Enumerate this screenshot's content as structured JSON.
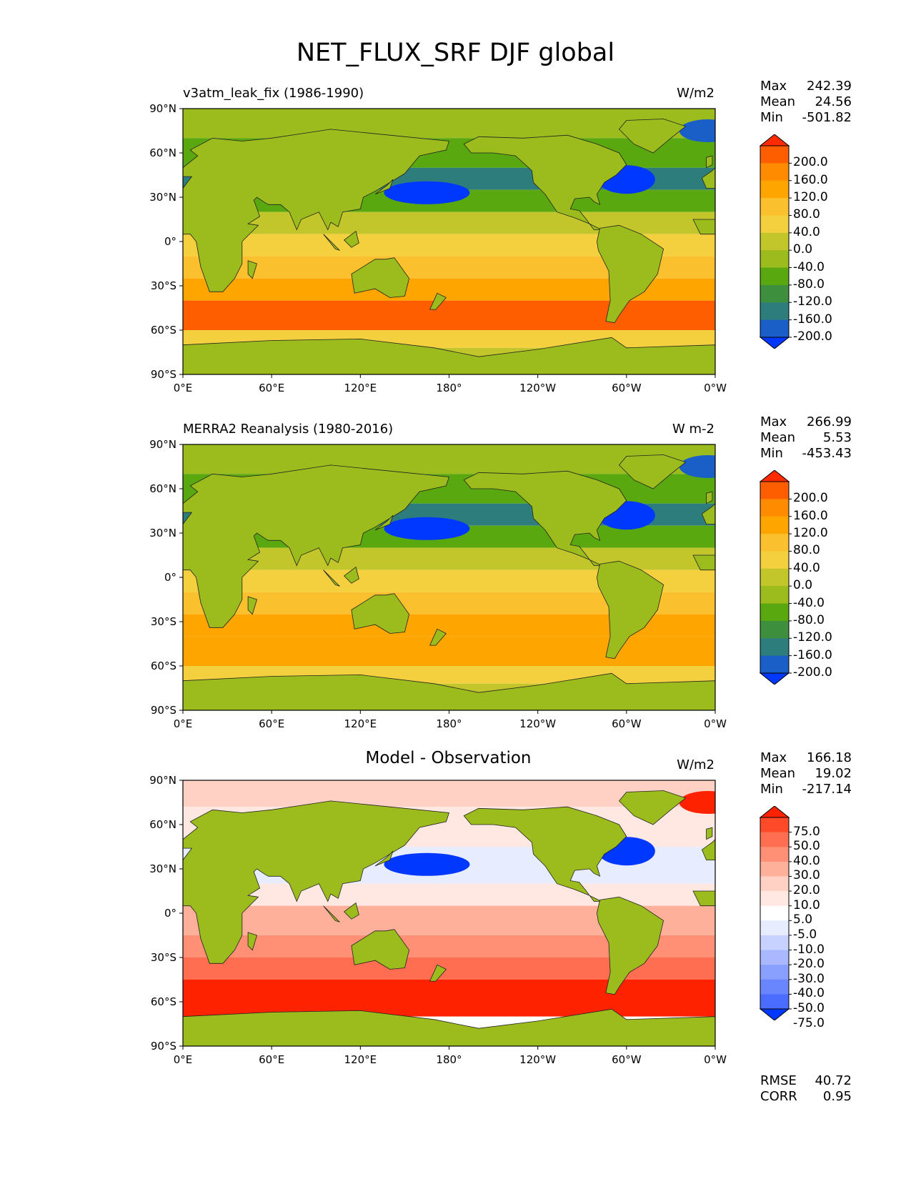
{
  "figure": {
    "title": "NET_FLUX_SRF DJF global"
  },
  "axes": {
    "lat_ticks": [
      "90°N",
      "60°N",
      "30°N",
      "0°",
      "30°S",
      "60°S",
      "90°S"
    ],
    "lon_ticks": [
      "0°E",
      "60°E",
      "120°E",
      "180°",
      "120°W",
      "60°W",
      "0°W"
    ]
  },
  "panels": [
    {
      "id": "model",
      "title_left": "v3atm_leak_fix (1986-1990)",
      "title_center": "",
      "units": "W/m2",
      "stats": [
        {
          "label": "Max",
          "value": "242.39"
        },
        {
          "label": "Mean",
          "value": "24.56"
        },
        {
          "label": "Min",
          "value": "-501.82"
        }
      ],
      "colorbar": {
        "labels": [
          "200.0",
          "160.0",
          "120.0",
          "80.0",
          "40.0",
          "0.0",
          "-40.0",
          "-80.0",
          "-120.0",
          "-160.0",
          "-200.0"
        ],
        "colors": [
          "#ff2a00",
          "#ff5e00",
          "#ff8c00",
          "#ffa500",
          "#fbc02d",
          "#f4d03f",
          "#c3c62b",
          "#9cbb1c",
          "#5aa80f",
          "#3d8f3d",
          "#2e7d7d",
          "#1a5fc8",
          "#0038ff"
        ]
      }
    },
    {
      "id": "obs",
      "title_left": "MERRA2 Reanalysis (1980-2016)",
      "title_center": "",
      "units": "W m-2",
      "stats": [
        {
          "label": "Max",
          "value": "266.99"
        },
        {
          "label": "Mean",
          "value": "5.53"
        },
        {
          "label": "Min",
          "value": "-453.43"
        }
      ],
      "colorbar": {
        "labels": [
          "200.0",
          "160.0",
          "120.0",
          "80.0",
          "40.0",
          "0.0",
          "-40.0",
          "-80.0",
          "-120.0",
          "-160.0",
          "-200.0"
        ],
        "colors": [
          "#ff2a00",
          "#ff5e00",
          "#ff8c00",
          "#ffa500",
          "#fbc02d",
          "#f4d03f",
          "#c3c62b",
          "#9cbb1c",
          "#5aa80f",
          "#3d8f3d",
          "#2e7d7d",
          "#1a5fc8",
          "#0038ff"
        ]
      }
    },
    {
      "id": "diff",
      "title_left": "",
      "title_center": "Model - Observation",
      "units": "W/m2",
      "stats": [
        {
          "label": "Max",
          "value": "166.18"
        },
        {
          "label": "Mean",
          "value": "19.02"
        },
        {
          "label": "Min",
          "value": "-217.14"
        }
      ],
      "colorbar": {
        "labels": [
          "75.0",
          "50.0",
          "40.0",
          "30.0",
          "20.0",
          "10.0",
          "5.0",
          "-5.0",
          "-10.0",
          "-20.0",
          "-30.0",
          "-40.0",
          "-50.0",
          "-75.0"
        ],
        "colors": [
          "#ff2200",
          "#ff4a2a",
          "#ff6e50",
          "#ff8f75",
          "#ffb09a",
          "#ffd0c4",
          "#ffe8e2",
          "#ffffff",
          "#e8ecff",
          "#c8d2ff",
          "#a9b8ff",
          "#8aa0ff",
          "#6a86ff",
          "#4a6cff",
          "#0038ff"
        ]
      },
      "metrics": [
        {
          "label": "RMSE",
          "value": "40.72"
        },
        {
          "label": "CORR",
          "value": "0.95"
        }
      ]
    }
  ]
}
